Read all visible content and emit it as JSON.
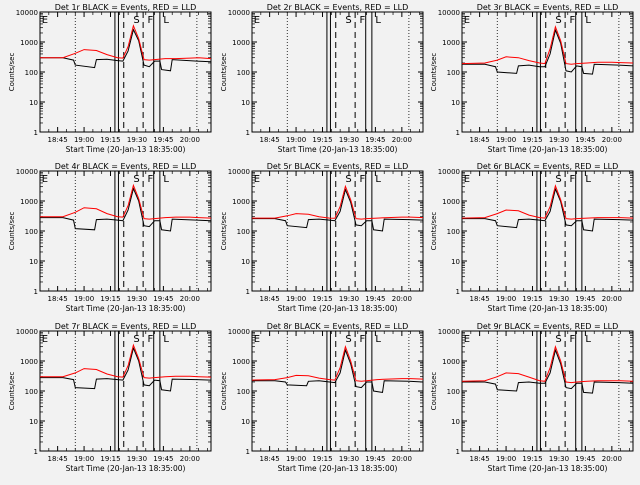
{
  "chart_data": [
    {
      "type": "line",
      "title": "Det 1r BLACK = Events, RED = LLD",
      "xlabel": "Start Time (20-Jan-13 18:35:00)",
      "ylabel": "Counts/sec",
      "xticks": [
        "18:45",
        "19:00",
        "19:15",
        "19:30",
        "19:45",
        "20:00"
      ],
      "yticks": [
        "1",
        "10",
        "100",
        "1000",
        "10000"
      ],
      "ylim": [
        1,
        10000
      ],
      "yscale": "log",
      "markers": [
        "E",
        "S",
        "F",
        "L"
      ],
      "has_data": true,
      "series": [
        {
          "color": "#000000",
          "x": [
            "18:35",
            "18:48",
            "18:54",
            "18:55",
            "19:06",
            "19:07",
            "19:13",
            "19:19",
            "19:22",
            "19:25",
            "19:28",
            "19:31",
            "19:34",
            "19:37",
            "19:40",
            "19:43",
            "19:44",
            "19:49",
            "19:50",
            "20:04",
            "20:12"
          ],
          "values": [
            300,
            300,
            250,
            170,
            140,
            260,
            265,
            240,
            230,
            500,
            2600,
            1100,
            170,
            150,
            230,
            230,
            120,
            110,
            260,
            230,
            220
          ]
        },
        {
          "color": "#ff0000",
          "x": [
            "18:35",
            "18:48",
            "18:55",
            "19:00",
            "19:07",
            "19:13",
            "19:19",
            "19:22",
            "19:25",
            "19:28",
            "19:31",
            "19:34",
            "19:37",
            "19:40",
            "19:46",
            "19:52",
            "20:00",
            "20:05",
            "20:12"
          ],
          "values": [
            300,
            300,
            420,
            560,
            520,
            380,
            300,
            290,
            700,
            3500,
            1300,
            260,
            250,
            260,
            280,
            280,
            290,
            300,
            280
          ]
        }
      ]
    },
    {
      "type": "line",
      "title": "Det 2r BLACK = Events, RED = LLD",
      "xlabel": "Start Time (20-Jan-13 18:35:00)",
      "ylabel": "Counts/sec",
      "xticks": [
        "18:45",
        "19:00",
        "19:15",
        "19:30",
        "19:45",
        "20:00"
      ],
      "yticks": [
        "1",
        "10",
        "100",
        "1000",
        "10000"
      ],
      "ylim": [
        1,
        10000
      ],
      "yscale": "log",
      "markers": [
        "E",
        "S",
        "F",
        "L"
      ],
      "has_data": false,
      "series": []
    },
    {
      "type": "line",
      "title": "Det 3r BLACK = Events, RED = LLD",
      "xlabel": "Start Time (20-Jan-13 18:35:00)",
      "ylabel": "Counts/sec",
      "xticks": [
        "18:45",
        "19:00",
        "19:15",
        "19:30",
        "19:45",
        "20:00"
      ],
      "yticks": [
        "1",
        "10",
        "100",
        "1000",
        "10000"
      ],
      "ylim": [
        1,
        10000
      ],
      "yscale": "log",
      "markers": [
        "E",
        "S",
        "F",
        "L"
      ],
      "has_data": true,
      "series": [
        {
          "color": "#000000",
          "x": [
            "18:35",
            "18:48",
            "18:54",
            "18:55",
            "19:06",
            "19:07",
            "19:13",
            "19:19",
            "19:22",
            "19:25",
            "19:28",
            "19:31",
            "19:34",
            "19:37",
            "19:40",
            "19:43",
            "19:44",
            "19:49",
            "19:50",
            "20:04",
            "20:12"
          ],
          "values": [
            180,
            180,
            150,
            100,
            90,
            160,
            170,
            150,
            150,
            400,
            2500,
            900,
            110,
            100,
            160,
            150,
            90,
            85,
            180,
            170,
            160
          ]
        },
        {
          "color": "#ff0000",
          "x": [
            "18:35",
            "18:48",
            "18:55",
            "19:00",
            "19:07",
            "19:13",
            "19:19",
            "19:22",
            "19:25",
            "19:28",
            "19:31",
            "19:34",
            "19:37",
            "19:40",
            "19:46",
            "19:52",
            "20:00",
            "20:05",
            "20:12"
          ],
          "values": [
            190,
            200,
            250,
            320,
            300,
            240,
            200,
            190,
            600,
            3200,
            1100,
            190,
            180,
            190,
            200,
            210,
            210,
            205,
            200
          ]
        }
      ]
    },
    {
      "type": "line",
      "title": "Det 4r BLACK = Events, RED = LLD",
      "xlabel": "Start Time (20-Jan-13 18:35:00)",
      "ylabel": "Counts/sec",
      "xticks": [
        "18:45",
        "19:00",
        "19:15",
        "19:30",
        "19:45",
        "20:00"
      ],
      "yticks": [
        "1",
        "10",
        "100",
        "1000",
        "10000"
      ],
      "ylim": [
        1,
        10000
      ],
      "yscale": "log",
      "markers": [
        "E",
        "S",
        "F",
        "L"
      ],
      "has_data": true,
      "series": [
        {
          "color": "#000000",
          "x": [
            "18:35",
            "18:48",
            "18:54",
            "18:55",
            "19:06",
            "19:07",
            "19:13",
            "19:19",
            "19:22",
            "19:25",
            "19:28",
            "19:31",
            "19:34",
            "19:37",
            "19:40",
            "19:43",
            "19:44",
            "19:49",
            "19:50",
            "20:04",
            "20:12"
          ],
          "values": [
            280,
            280,
            230,
            120,
            110,
            240,
            250,
            230,
            220,
            500,
            2600,
            1000,
            150,
            140,
            220,
            220,
            110,
            100,
            250,
            230,
            220
          ]
        },
        {
          "color": "#ff0000",
          "x": [
            "18:35",
            "18:48",
            "18:55",
            "19:00",
            "19:07",
            "19:13",
            "19:19",
            "19:22",
            "19:25",
            "19:28",
            "19:31",
            "19:34",
            "19:37",
            "19:40",
            "19:46",
            "19:52",
            "20:00",
            "20:05",
            "20:12"
          ],
          "values": [
            300,
            300,
            420,
            600,
            550,
            380,
            300,
            290,
            700,
            3300,
            1200,
            260,
            250,
            260,
            280,
            290,
            290,
            280,
            270
          ]
        }
      ]
    },
    {
      "type": "line",
      "title": "Det 5r BLACK = Events, RED = LLD",
      "xlabel": "Start Time (20-Jan-13 18:35:00)",
      "ylabel": "Counts/sec",
      "xticks": [
        "18:45",
        "19:00",
        "19:15",
        "19:30",
        "19:45",
        "20:00"
      ],
      "yticks": [
        "1",
        "10",
        "100",
        "1000",
        "10000"
      ],
      "ylim": [
        1,
        10000
      ],
      "yscale": "log",
      "markers": [
        "E",
        "S",
        "F",
        "L"
      ],
      "has_data": true,
      "series": [
        {
          "color": "#000000",
          "x": [
            "18:35",
            "18:48",
            "18:54",
            "18:55",
            "19:06",
            "19:07",
            "19:13",
            "19:19",
            "19:22",
            "19:25",
            "19:28",
            "19:31",
            "19:34",
            "19:37",
            "19:40",
            "19:43",
            "19:44",
            "19:49",
            "19:50",
            "20:04",
            "20:12"
          ],
          "values": [
            260,
            260,
            220,
            150,
            130,
            240,
            250,
            230,
            220,
            450,
            2400,
            900,
            160,
            150,
            220,
            220,
            110,
            100,
            250,
            240,
            230
          ]
        },
        {
          "color": "#ff0000",
          "x": [
            "18:35",
            "18:48",
            "18:55",
            "19:00",
            "19:07",
            "19:13",
            "19:19",
            "19:22",
            "19:25",
            "19:28",
            "19:31",
            "19:34",
            "19:37",
            "19:40",
            "19:46",
            "19:52",
            "20:00",
            "20:05",
            "20:12"
          ],
          "values": [
            270,
            270,
            320,
            380,
            360,
            300,
            270,
            265,
            650,
            3100,
            1100,
            260,
            250,
            260,
            270,
            280,
            290,
            290,
            280
          ]
        }
      ]
    },
    {
      "type": "line",
      "title": "Det 6r BLACK = Events, RED = LLD",
      "xlabel": "Start Time (20-Jan-13 18:35:00)",
      "ylabel": "Counts/sec",
      "xticks": [
        "18:45",
        "19:00",
        "19:15",
        "19:30",
        "19:45",
        "20:00"
      ],
      "yticks": [
        "1",
        "10",
        "100",
        "1000",
        "10000"
      ],
      "ylim": [
        1,
        10000
      ],
      "yscale": "log",
      "markers": [
        "E",
        "S",
        "F",
        "L"
      ],
      "has_data": true,
      "series": [
        {
          "color": "#000000",
          "x": [
            "18:35",
            "18:48",
            "18:54",
            "18:55",
            "19:06",
            "19:07",
            "19:13",
            "19:19",
            "19:22",
            "19:25",
            "19:28",
            "19:31",
            "19:34",
            "19:37",
            "19:40",
            "19:43",
            "19:44",
            "19:49",
            "19:50",
            "20:04",
            "20:12"
          ],
          "values": [
            260,
            260,
            220,
            150,
            130,
            240,
            250,
            230,
            220,
            450,
            2500,
            950,
            160,
            150,
            220,
            220,
            110,
            100,
            250,
            240,
            230
          ]
        },
        {
          "color": "#ff0000",
          "x": [
            "18:35",
            "18:48",
            "18:55",
            "19:00",
            "19:07",
            "19:13",
            "19:19",
            "19:22",
            "19:25",
            "19:28",
            "19:31",
            "19:34",
            "19:37",
            "19:40",
            "19:46",
            "19:52",
            "20:00",
            "20:05",
            "20:12"
          ],
          "values": [
            270,
            280,
            380,
            500,
            470,
            340,
            280,
            270,
            650,
            3200,
            1100,
            260,
            250,
            260,
            270,
            280,
            280,
            280,
            270
          ]
        }
      ]
    },
    {
      "type": "line",
      "title": "Det 7r BLACK = Events, RED = LLD",
      "xlabel": "Start Time (20-Jan-13 18:35:00)",
      "ylabel": "Counts/sec",
      "xticks": [
        "18:45",
        "19:00",
        "19:15",
        "19:30",
        "19:45",
        "20:00"
      ],
      "yticks": [
        "1",
        "10",
        "100",
        "1000",
        "10000"
      ],
      "ylim": [
        1,
        10000
      ],
      "yscale": "log",
      "markers": [
        "E",
        "S",
        "F",
        "L"
      ],
      "has_data": true,
      "series": [
        {
          "color": "#000000",
          "x": [
            "18:35",
            "18:48",
            "18:54",
            "18:55",
            "19:06",
            "19:07",
            "19:13",
            "19:19",
            "19:22",
            "19:25",
            "19:28",
            "19:31",
            "19:34",
            "19:37",
            "19:40",
            "19:43",
            "19:44",
            "19:49",
            "19:50",
            "20:04",
            "20:12"
          ],
          "values": [
            280,
            280,
            240,
            130,
            120,
            250,
            260,
            240,
            230,
            500,
            2700,
            1000,
            160,
            150,
            230,
            220,
            110,
            100,
            250,
            240,
            230
          ]
        },
        {
          "color": "#ff0000",
          "x": [
            "18:35",
            "18:48",
            "18:55",
            "19:00",
            "19:07",
            "19:13",
            "19:19",
            "19:22",
            "19:25",
            "19:28",
            "19:31",
            "19:34",
            "19:37",
            "19:40",
            "19:46",
            "19:52",
            "20:00",
            "20:05",
            "20:12"
          ],
          "values": [
            300,
            300,
            400,
            560,
            520,
            370,
            300,
            290,
            700,
            3400,
            1200,
            280,
            270,
            280,
            300,
            310,
            310,
            300,
            290
          ]
        }
      ]
    },
    {
      "type": "line",
      "title": "Det 8r BLACK = Events, RED = LLD",
      "xlabel": "Start Time (20-Jan-13 18:35:00)",
      "ylabel": "Counts/sec",
      "xticks": [
        "18:45",
        "19:00",
        "19:15",
        "19:30",
        "19:45",
        "20:00"
      ],
      "yticks": [
        "1",
        "10",
        "100",
        "1000",
        "10000"
      ],
      "ylim": [
        1,
        10000
      ],
      "yscale": "log",
      "markers": [
        "E",
        "S",
        "F",
        "L"
      ],
      "has_data": true,
      "series": [
        {
          "color": "#000000",
          "x": [
            "18:35",
            "18:48",
            "18:54",
            "18:55",
            "19:06",
            "19:07",
            "19:13",
            "19:19",
            "19:22",
            "19:25",
            "19:28",
            "19:31",
            "19:34",
            "19:37",
            "19:40",
            "19:43",
            "19:44",
            "19:49",
            "19:50",
            "20:04",
            "20:12"
          ],
          "values": [
            220,
            220,
            200,
            160,
            150,
            210,
            220,
            200,
            190,
            400,
            2300,
            800,
            140,
            130,
            200,
            200,
            100,
            90,
            220,
            210,
            200
          ]
        },
        {
          "color": "#ff0000",
          "x": [
            "18:35",
            "18:48",
            "18:55",
            "19:00",
            "19:07",
            "19:13",
            "19:19",
            "19:22",
            "19:25",
            "19:28",
            "19:31",
            "19:34",
            "19:37",
            "19:40",
            "19:46",
            "19:52",
            "20:00",
            "20:05",
            "20:12"
          ],
          "values": [
            230,
            240,
            280,
            330,
            320,
            270,
            240,
            230,
            600,
            3000,
            1000,
            220,
            210,
            220,
            240,
            250,
            260,
            260,
            250
          ]
        }
      ]
    },
    {
      "type": "line",
      "title": "Det 9r BLACK = Events, RED = LLD",
      "xlabel": "Start Time (20-Jan-13 18:35:00)",
      "ylabel": "Counts/sec",
      "xticks": [
        "18:45",
        "19:00",
        "19:15",
        "19:30",
        "19:45",
        "20:00"
      ],
      "yticks": [
        "1",
        "10",
        "100",
        "1000",
        "10000"
      ],
      "ylim": [
        1,
        10000
      ],
      "yscale": "log",
      "markers": [
        "E",
        "S",
        "F",
        "L"
      ],
      "has_data": true,
      "series": [
        {
          "color": "#000000",
          "x": [
            "18:35",
            "18:48",
            "18:54",
            "18:55",
            "19:06",
            "19:07",
            "19:13",
            "19:19",
            "19:22",
            "19:25",
            "19:28",
            "19:31",
            "19:34",
            "19:37",
            "19:40",
            "19:43",
            "19:44",
            "19:49",
            "19:50",
            "20:04",
            "20:12"
          ],
          "values": [
            200,
            200,
            170,
            110,
            100,
            190,
            200,
            180,
            180,
            400,
            2300,
            800,
            130,
            120,
            180,
            180,
            90,
            85,
            200,
            190,
            180
          ]
        },
        {
          "color": "#ff0000",
          "x": [
            "18:35",
            "18:48",
            "18:55",
            "19:00",
            "19:07",
            "19:13",
            "19:19",
            "19:22",
            "19:25",
            "19:28",
            "19:31",
            "19:34",
            "19:37",
            "19:40",
            "19:46",
            "19:52",
            "20:00",
            "20:05",
            "20:12"
          ],
          "values": [
            210,
            220,
            300,
            400,
            380,
            290,
            220,
            210,
            600,
            3000,
            1000,
            200,
            190,
            200,
            210,
            220,
            220,
            220,
            210
          ]
        }
      ]
    }
  ]
}
